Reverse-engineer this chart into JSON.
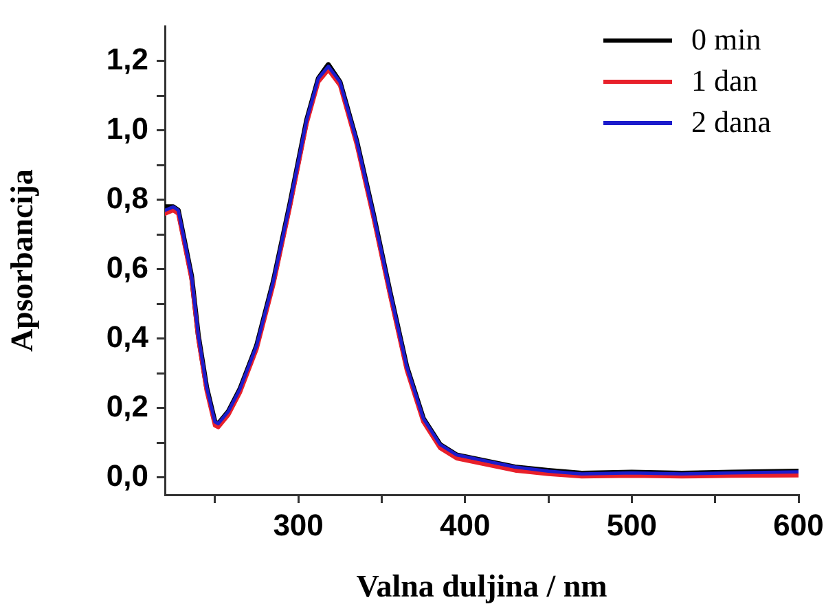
{
  "chart_data": {
    "type": "line",
    "xlabel": "Valna duljina / nm",
    "ylabel": "Apsorbancija",
    "xlim": [
      220,
      600
    ],
    "ylim": [
      -0.05,
      1.3
    ],
    "xticks": [
      {
        "value": 250,
        "label": null
      },
      300,
      {
        "value": 350,
        "label": null
      },
      400,
      {
        "value": 450,
        "label": null
      },
      500,
      {
        "value": 550,
        "label": null
      },
      600
    ],
    "yticks": [
      {
        "value": 0,
        "label": "0,0"
      },
      {
        "value": 0.1,
        "label": null
      },
      {
        "value": 0.2,
        "label": "0,2"
      },
      {
        "value": 0.3,
        "label": null
      },
      {
        "value": 0.4,
        "label": "0,4"
      },
      {
        "value": 0.5,
        "label": null
      },
      {
        "value": 0.6,
        "label": "0,6"
      },
      {
        "value": 0.7,
        "label": null
      },
      {
        "value": 0.8,
        "label": "0,8"
      },
      {
        "value": 0.9,
        "label": null
      },
      {
        "value": 1.0,
        "label": "1,0"
      },
      {
        "value": 1.1,
        "label": null
      },
      {
        "value": 1.2,
        "label": "1,2"
      }
    ],
    "grid": false,
    "legend": "top right",
    "marker": "none",
    "line_style": "solid",
    "x": [
      220,
      225,
      228,
      236,
      240,
      245,
      250,
      252,
      258,
      265,
      275,
      285,
      295,
      305,
      312,
      318,
      325,
      335,
      345,
      355,
      365,
      375,
      385,
      395,
      410,
      430,
      450,
      470,
      500,
      530,
      560,
      600
    ],
    "series": [
      {
        "name": "0 min",
        "color": "#000000",
        "values": [
          0.78,
          0.78,
          0.77,
          0.58,
          0.41,
          0.26,
          0.16,
          0.155,
          0.19,
          0.255,
          0.38,
          0.565,
          0.79,
          1.03,
          1.15,
          1.19,
          1.14,
          0.97,
          0.76,
          0.535,
          0.32,
          0.17,
          0.095,
          0.065,
          0.05,
          0.03,
          0.02,
          0.012,
          0.015,
          0.012,
          0.015,
          0.018
        ]
      },
      {
        "name": "1 dan",
        "color": "#e8202a",
        "values": [
          0.76,
          0.77,
          0.76,
          0.57,
          0.4,
          0.25,
          0.15,
          0.145,
          0.18,
          0.245,
          0.37,
          0.555,
          0.78,
          1.02,
          1.14,
          1.175,
          1.13,
          0.96,
          0.75,
          0.525,
          0.31,
          0.16,
          0.085,
          0.055,
          0.04,
          0.02,
          0.01,
          0.003,
          0.005,
          0.003,
          0.005,
          0.006
        ]
      },
      {
        "name": "2 dana",
        "color": "#1c1ccc",
        "values": [
          0.77,
          0.78,
          0.77,
          0.58,
          0.41,
          0.26,
          0.16,
          0.155,
          0.19,
          0.255,
          0.38,
          0.565,
          0.79,
          1.03,
          1.15,
          1.185,
          1.14,
          0.97,
          0.76,
          0.535,
          0.32,
          0.17,
          0.095,
          0.065,
          0.05,
          0.03,
          0.018,
          0.01,
          0.013,
          0.01,
          0.013,
          0.016
        ]
      }
    ]
  }
}
